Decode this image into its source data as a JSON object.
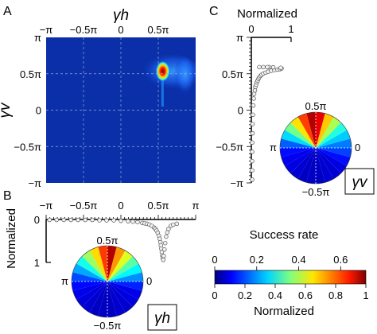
{
  "panels": {
    "a": {
      "label": "A"
    },
    "b": {
      "label": "B"
    },
    "c": {
      "label": "C"
    }
  },
  "chart_data": [
    {
      "type": "heatmap",
      "panel": "A",
      "xlabel": "γh",
      "ylabel": "γv",
      "xlim": [
        -3.1416,
        3.1416
      ],
      "ylim": [
        -3.1416,
        3.1416
      ],
      "x_ticks": [
        -3.1416,
        -1.5708,
        0,
        1.5708
      ],
      "x_tick_labels": [
        "−π",
        "−0.5π",
        "0",
        "0.5π"
      ],
      "y_ticks": [
        3.1416,
        1.5708,
        0,
        -1.5708,
        -3.1416
      ],
      "y_tick_labels": [
        "π",
        "0.5π",
        "0",
        "−0.5π",
        "−π"
      ],
      "grid": true,
      "background": "#0a2fa8",
      "hotspot": {
        "x": 1.76,
        "y": 1.68,
        "peak": 0.72
      },
      "ridge": {
        "x_from": 1.7,
        "x_to": 1.8,
        "y_from": 1.68,
        "y_to": 0.15
      }
    },
    {
      "type": "scatter",
      "panel": "B",
      "xlabel": "",
      "ylabel": "Normalized",
      "xlim": [
        -3.1416,
        3.1416
      ],
      "ylim": [
        0,
        1
      ],
      "x_ticks": [
        -3.1416,
        -1.5708,
        0,
        1.5708,
        3.1416
      ],
      "x_tick_labels": [
        "−π",
        "−0.5π",
        "0",
        "0.5π",
        "π"
      ],
      "y_ticks": [
        0,
        1
      ],
      "y_tick_labels": [
        "0",
        "1"
      ],
      "x": [
        -3.0,
        -2.7,
        -2.4,
        -2.1,
        -1.8,
        -1.5,
        -1.2,
        -0.9,
        -0.6,
        -0.3,
        0.0,
        0.3,
        0.5,
        0.7,
        0.9,
        1.0,
        1.1,
        1.2,
        1.3,
        1.4,
        1.45,
        1.5,
        1.55,
        1.6,
        1.63,
        1.66,
        1.68,
        1.7,
        1.72,
        1.74,
        1.76,
        1.78,
        1.8,
        1.83,
        1.86,
        1.9,
        1.95,
        2.0,
        2.1,
        2.2,
        2.35
      ],
      "values": [
        0.01,
        0.01,
        0.01,
        0.01,
        0.01,
        0.01,
        0.01,
        0.02,
        0.02,
        0.02,
        0.03,
        0.04,
        0.05,
        0.06,
        0.08,
        0.09,
        0.1,
        0.12,
        0.15,
        0.19,
        0.22,
        0.26,
        0.31,
        0.38,
        0.45,
        0.53,
        0.6,
        0.68,
        0.76,
        0.84,
        0.9,
        0.94,
        0.85,
        0.7,
        0.55,
        0.4,
        0.3,
        0.22,
        0.15,
        0.12,
        0.1
      ]
    },
    {
      "type": "scatter",
      "panel": "C",
      "xlabel": "Normalized",
      "ylabel": "",
      "xlim": [
        0,
        1
      ],
      "ylim": [
        -3.1416,
        3.1416
      ],
      "x_ticks": [
        0,
        1
      ],
      "x_tick_labels": [
        "0",
        "1"
      ],
      "y_ticks": [
        3.1416,
        1.5708,
        0,
        -1.5708,
        -3.1416
      ],
      "y_tick_labels": [
        "π",
        "0.5π",
        "0",
        "−0.5π",
        "−π"
      ],
      "x": [
        0.02,
        0.02,
        0.02,
        0.02,
        0.02,
        0.03,
        0.03,
        0.04,
        0.05,
        0.06,
        0.07,
        0.09,
        0.1,
        0.12,
        0.14,
        0.16,
        0.18,
        0.2,
        0.23,
        0.26,
        0.3,
        0.36,
        0.42,
        0.5,
        0.58,
        0.66,
        0.72,
        0.76,
        0.74,
        0.55,
        0.45,
        0.4,
        0.3,
        0.2
      ],
      "values": [
        -3.0,
        -2.6,
        -2.2,
        -1.8,
        -1.4,
        -1.0,
        -0.6,
        -0.2,
        0.2,
        0.5,
        0.7,
        0.85,
        1.0,
        1.1,
        1.2,
        1.28,
        1.35,
        1.42,
        1.48,
        1.53,
        1.58,
        1.62,
        1.66,
        1.7,
        1.73,
        1.75,
        1.77,
        1.8,
        1.83,
        1.85,
        1.86,
        1.86,
        1.86,
        1.86
      ]
    },
    {
      "type": "pie",
      "panel": "B",
      "axis_labels": {
        "top": "0.5π",
        "right": "0",
        "left": "π",
        "bottom": "−0.5π"
      },
      "legend_symbol": "γh",
      "bins": 24,
      "values": [
        0.2,
        0.28,
        0.35,
        0.45,
        0.55,
        0.72,
        0.62,
        0.5,
        0.4,
        0.3,
        0.22,
        0.15,
        0.1,
        0.08,
        0.07,
        0.06,
        0.05,
        0.05,
        0.05,
        0.06,
        0.06,
        0.07,
        0.08,
        0.12
      ]
    },
    {
      "type": "pie",
      "panel": "C",
      "axis_labels": {
        "top": "0.5π",
        "right": "0",
        "left": "π",
        "bottom": "−0.5π"
      },
      "legend_symbol": "γv",
      "bins": 24,
      "values": [
        0.18,
        0.24,
        0.3,
        0.4,
        0.5,
        0.66,
        0.7,
        0.6,
        0.48,
        0.36,
        0.25,
        0.16,
        0.1,
        0.08,
        0.07,
        0.06,
        0.05,
        0.05,
        0.05,
        0.06,
        0.06,
        0.07,
        0.1,
        0.14
      ]
    },
    {
      "type": "colorbar",
      "title": "Success rate",
      "xlabel": "Normalized",
      "top_ticks": [
        0,
        0.2,
        0.4,
        0.6
      ],
      "top_tick_labels": [
        "0",
        "0.2",
        "0.4",
        "0.6"
      ],
      "bottom_ticks": [
        0,
        0.2,
        0.4,
        0.6,
        0.8,
        1
      ],
      "bottom_tick_labels": [
        "0",
        "0.2",
        "0.4",
        "0.6",
        "0.8",
        "1"
      ],
      "top_range": [
        0,
        0.72
      ],
      "bottom_range": [
        0,
        1
      ],
      "colormap": "jet"
    }
  ]
}
